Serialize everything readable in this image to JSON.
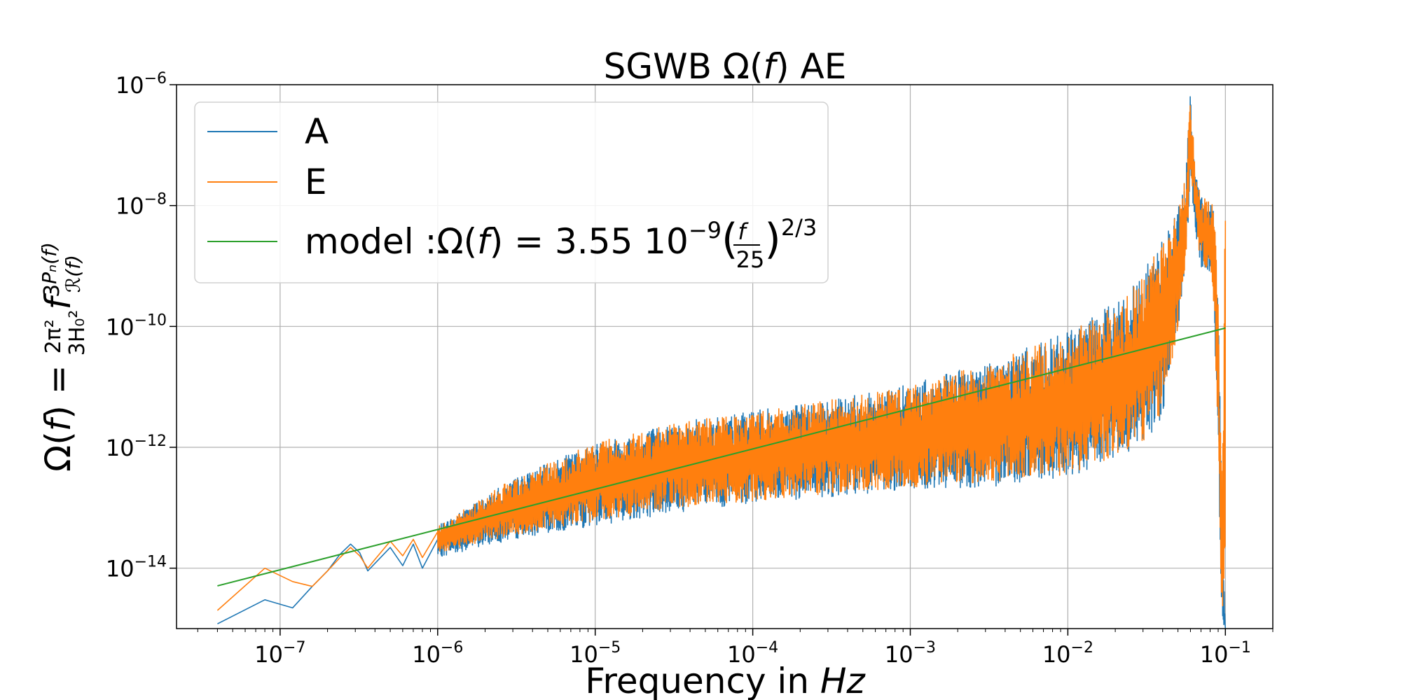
{
  "chart_data": {
    "type": "line",
    "title": "SGWB Ω(f) AE",
    "xlabel": "Frequency in Hz",
    "ylabel": "Ω(f) = 2π²/3H₀² f³ Pₙ(f)/ℛ(f)",
    "x_scale": "log",
    "y_scale": "log",
    "xlim": [
      2.2e-08,
      0.2
    ],
    "ylim": [
      1e-15,
      1e-06
    ],
    "x_ticks": [
      {
        "base": "10",
        "exp": "−7",
        "value": 1e-07
      },
      {
        "base": "10",
        "exp": "−6",
        "value": 1e-06
      },
      {
        "base": "10",
        "exp": "−5",
        "value": 1e-05
      },
      {
        "base": "10",
        "exp": "−4",
        "value": 0.0001
      },
      {
        "base": "10",
        "exp": "−3",
        "value": 0.001
      },
      {
        "base": "10",
        "exp": "−2",
        "value": 0.01
      },
      {
        "base": "10",
        "exp": "−1",
        "value": 0.1
      }
    ],
    "y_ticks": [
      {
        "base": "10",
        "exp": "−6",
        "value": 1e-06
      },
      {
        "base": "10",
        "exp": "−8",
        "value": 1e-08
      },
      {
        "base": "10",
        "exp": "−10",
        "value": 1e-10
      },
      {
        "base": "10",
        "exp": "−12",
        "value": 1e-12
      },
      {
        "base": "10",
        "exp": "−14",
        "value": 1e-14
      }
    ],
    "grid": true,
    "legend_position": "top-left",
    "colors": {
      "A": "#1f77b4",
      "E": "#ff7f0e",
      "model": "#2ca02c"
    },
    "series": [
      {
        "name": "A",
        "x": [
          4e-08,
          8e-08,
          1.2e-07,
          1.6e-07,
          2e-07,
          2.4e-07,
          2.8e-07,
          3.2e-07,
          3.6e-07,
          4e-07,
          5e-07,
          6e-07,
          7e-07,
          8e-07,
          1e-06
        ],
        "y": [
          1.2e-15,
          3e-15,
          2.2e-15,
          5e-15,
          9e-15,
          1.7e-14,
          2.5e-14,
          1.8e-14,
          9e-15,
          1.2e-14,
          2.2e-14,
          1.1e-14,
          2.5e-14,
          1e-14,
          3e-14
        ],
        "band": {
          "x": [
            1e-06,
            3e-06,
            1e-05,
            3e-05,
            0.0001,
            0.0003,
            0.001,
            0.003,
            0.01,
            0.02,
            0.03,
            0.04,
            0.05,
            0.056,
            0.06,
            0.065,
            0.07,
            0.08,
            0.085,
            0.09,
            0.095,
            0.1
          ],
          "upper": [
            5e-14,
            3e-13,
            1.2e-12,
            2.5e-12,
            4e-12,
            6e-12,
            1.1e-11,
            2.5e-11,
            8e-11,
            2.5e-10,
            8e-10,
            3e-09,
            1e-08,
            3e-08,
            9e-07,
            3e-08,
            1.5e-08,
            1.2e-08,
            1e-08,
            3e-10,
            2e-13,
            1e-15
          ],
          "lower": [
            1.5e-14,
            3e-14,
            5e-14,
            8e-14,
            1.2e-13,
            1.5e-13,
            2e-13,
            2.2e-13,
            3e-13,
            6e-13,
            1e-12,
            3e-12,
            8e-11,
            8e-10,
            3e-08,
            3e-09,
            1e-09,
            5e-10,
            1e-10,
            1e-12,
            1e-15,
            1e-15
          ]
        }
      },
      {
        "name": "E",
        "x": [
          4e-08,
          8e-08,
          1.2e-07,
          1.6e-07,
          2e-07,
          2.4e-07,
          2.8e-07,
          3.2e-07,
          3.6e-07,
          4e-07,
          5e-07,
          6e-07,
          7e-07,
          8e-07,
          1e-06
        ],
        "y": [
          2e-15,
          1e-14,
          6e-15,
          5e-15,
          9e-15,
          1.5e-14,
          2.2e-14,
          1.6e-14,
          1e-14,
          1.4e-14,
          2.8e-14,
          1.6e-14,
          3e-14,
          1.5e-14,
          4e-14
        ],
        "band": {
          "x": [
            1e-06,
            3e-06,
            1e-05,
            3e-05,
            0.0001,
            0.0003,
            0.001,
            0.003,
            0.01,
            0.02,
            0.03,
            0.04,
            0.05,
            0.056,
            0.06,
            0.065,
            0.07,
            0.08,
            0.085,
            0.09,
            0.095,
            0.1
          ],
          "upper": [
            5e-14,
            3e-13,
            1.2e-12,
            2.4e-12,
            4e-12,
            6e-12,
            1e-11,
            2.4e-11,
            7.5e-11,
            2.3e-10,
            7.5e-10,
            2.8e-09,
            9e-09,
            3e-08,
            9e-07,
            3e-08,
            1.5e-08,
            1.2e-08,
            1e-08,
            3e-10,
            2e-13,
            1.5e-08
          ],
          "lower": [
            1.8e-14,
            3.5e-14,
            6e-14,
            9e-14,
            1.3e-13,
            1.7e-13,
            2.2e-13,
            2.5e-13,
            3.5e-13,
            7e-13,
            1.2e-12,
            3.5e-12,
            9e-11,
            9e-10,
            3.5e-08,
            3.5e-09,
            1.2e-09,
            6e-10,
            1.2e-10,
            1.5e-12,
            1e-15,
            1e-15
          ]
        }
      },
      {
        "name": "model :Ω(f) = 3.55 10⁻⁹(f/25)^(2/3)",
        "x": [
          4e-08,
          0.1
        ],
        "y": [
          5.1e-15,
          9.4e-11
        ]
      }
    ],
    "legend": {
      "A": "A",
      "E": "E",
      "model_prefix": "model :Ω(",
      "model_f": "f",
      "model_eq": ") = 3.55 10",
      "model_exp": "−9",
      "model_frac_num": "f",
      "model_frac_den": "25",
      "model_pow": "2/3"
    },
    "title_parts": {
      "pre": "SGWB Ω(",
      "f": "f",
      "post": ") AE"
    },
    "xlabel_parts": {
      "pre": "Frequency in ",
      "unit": "Hz"
    }
  }
}
